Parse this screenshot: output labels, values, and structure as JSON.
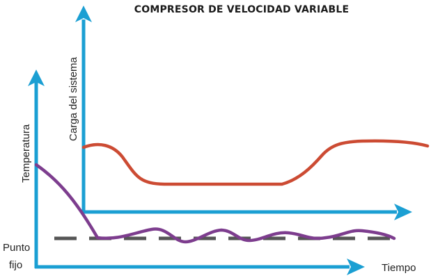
{
  "title": "COMPRESOR DE VELOCIDAD VARIABLE",
  "labels": {
    "load_axis": "Carga del sistema",
    "temp_axis": "Temperatura",
    "setpoint_line1": "Punto",
    "setpoint_line2": "fijo",
    "time_axis": "Tiempo"
  },
  "colors": {
    "axis": "#1b9fd3",
    "load_curve": "#cc4b33",
    "temperature_curve": "#7d3d8e",
    "setpoint": "#555555",
    "title": "#1a1a1a"
  }
}
